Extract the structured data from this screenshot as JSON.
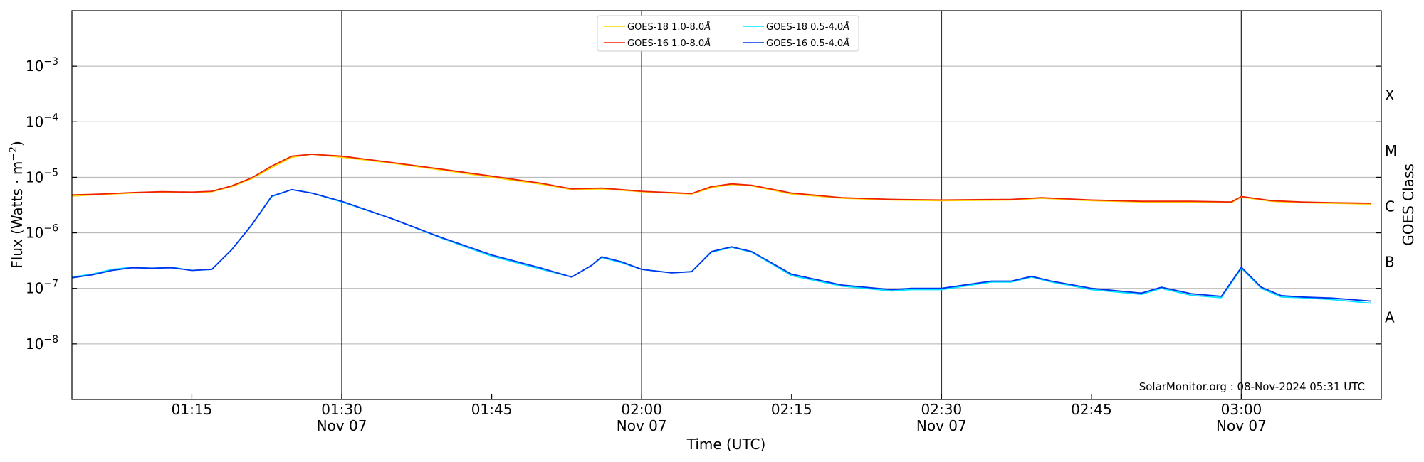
{
  "chart_data": {
    "type": "line",
    "xlabel": "Time (UTC)",
    "ylabel": "Flux (Watts · m",
    "ylabel_sup": "−2",
    "ylabel_close": ")",
    "right_label": "GOES Class",
    "y_scale": "log",
    "ylim": [
      1e-09,
      0.01
    ],
    "y_ticks": [
      {
        "value": 1e-08,
        "base": "10",
        "exp": "−8"
      },
      {
        "value": 1e-07,
        "base": "10",
        "exp": "−7"
      },
      {
        "value": 1e-06,
        "base": "10",
        "exp": "−6"
      },
      {
        "value": 1e-05,
        "base": "10",
        "exp": "−5"
      },
      {
        "value": 0.0001,
        "base": "10",
        "exp": "−4"
      },
      {
        "value": 0.001,
        "base": "10",
        "exp": "−3"
      }
    ],
    "xlim": [
      "01:03",
      "03:14"
    ],
    "x_ticks": [
      {
        "time": "01:15",
        "label": "01:15",
        "sub": ""
      },
      {
        "time": "01:30",
        "label": "01:30",
        "sub": "Nov 07"
      },
      {
        "time": "01:45",
        "label": "01:45",
        "sub": ""
      },
      {
        "time": "02:00",
        "label": "02:00",
        "sub": "Nov 07"
      },
      {
        "time": "02:15",
        "label": "02:15",
        "sub": ""
      },
      {
        "time": "02:30",
        "label": "02:30",
        "sub": "Nov 07"
      },
      {
        "time": "02:45",
        "label": "02:45",
        "sub": ""
      },
      {
        "time": "03:00",
        "label": "03:00",
        "sub": "Nov 07"
      }
    ],
    "vertical_lines": [
      "01:30",
      "02:00",
      "02:30",
      "03:00"
    ],
    "goes_classes": [
      {
        "label": "A",
        "value": 3e-08
      },
      {
        "label": "B",
        "value": 3e-07
      },
      {
        "label": "C",
        "value": 3e-06
      },
      {
        "label": "M",
        "value": 3e-05
      },
      {
        "label": "X",
        "value": 0.0003
      }
    ],
    "grid": true,
    "legend_position": "top-center",
    "legend": [
      {
        "name": "GOES-18 1.0-8.0",
        "unit": "Å",
        "color": "#ffd700"
      },
      {
        "name": "GOES-18 0.5-4.0",
        "unit": "Å",
        "color": "#00e5ff"
      },
      {
        "name": "GOES-16 1.0-8.0",
        "unit": "Å",
        "color": "#ee2200"
      },
      {
        "name": "GOES-16 0.5-4.0",
        "unit": "Å",
        "color": "#0033ee"
      }
    ],
    "series": [
      {
        "name": "GOES-18 1.0-8.0",
        "color": "#ffd700",
        "points": [
          [
            "01:03",
            4.6e-06
          ],
          [
            "01:06",
            4.9e-06
          ],
          [
            "01:09",
            5.2e-06
          ],
          [
            "01:12",
            5.4e-06
          ],
          [
            "01:15",
            5.3e-06
          ],
          [
            "01:17",
            5.5e-06
          ],
          [
            "01:19",
            6.8e-06
          ],
          [
            "01:21",
            9.5e-06
          ],
          [
            "01:23",
            1.5e-05
          ],
          [
            "01:25",
            2.3e-05
          ],
          [
            "01:27",
            2.6e-05
          ],
          [
            "01:30",
            2.3e-05
          ],
          [
            "01:35",
            1.8e-05
          ],
          [
            "01:40",
            1.35e-05
          ],
          [
            "01:45",
            1e-05
          ],
          [
            "01:50",
            7.5e-06
          ],
          [
            "01:53",
            6e-06
          ],
          [
            "01:56",
            6.2e-06
          ],
          [
            "02:00",
            5.5e-06
          ],
          [
            "02:05",
            5e-06
          ],
          [
            "02:07",
            6.5e-06
          ],
          [
            "02:09",
            7.4e-06
          ],
          [
            "02:11",
            7e-06
          ],
          [
            "02:15",
            5e-06
          ],
          [
            "02:20",
            4.2e-06
          ],
          [
            "02:25",
            3.9e-06
          ],
          [
            "02:30",
            3.8e-06
          ],
          [
            "02:37",
            3.9e-06
          ],
          [
            "02:40",
            4.2e-06
          ],
          [
            "02:45",
            3.8e-06
          ],
          [
            "02:50",
            3.6e-06
          ],
          [
            "02:55",
            3.6e-06
          ],
          [
            "02:59",
            3.5e-06
          ],
          [
            "03:00",
            4.4e-06
          ],
          [
            "03:03",
            3.7e-06
          ],
          [
            "03:06",
            3.5e-06
          ],
          [
            "03:09",
            3.4e-06
          ],
          [
            "03:13",
            3.3e-06
          ]
        ]
      },
      {
        "name": "GOES-16 1.0-8.0",
        "color": "#ee2200",
        "points": [
          [
            "01:03",
            4.8e-06
          ],
          [
            "01:06",
            5e-06
          ],
          [
            "01:09",
            5.3e-06
          ],
          [
            "01:12",
            5.5e-06
          ],
          [
            "01:15",
            5.4e-06
          ],
          [
            "01:17",
            5.6e-06
          ],
          [
            "01:19",
            7e-06
          ],
          [
            "01:21",
            9.8e-06
          ],
          [
            "01:23",
            1.6e-05
          ],
          [
            "01:25",
            2.4e-05
          ],
          [
            "01:27",
            2.6e-05
          ],
          [
            "01:30",
            2.4e-05
          ],
          [
            "01:35",
            1.85e-05
          ],
          [
            "01:40",
            1.4e-05
          ],
          [
            "01:45",
            1.05e-05
          ],
          [
            "01:50",
            7.8e-06
          ],
          [
            "01:53",
            6.2e-06
          ],
          [
            "01:56",
            6.4e-06
          ],
          [
            "02:00",
            5.6e-06
          ],
          [
            "02:05",
            5.1e-06
          ],
          [
            "02:07",
            6.8e-06
          ],
          [
            "02:09",
            7.6e-06
          ],
          [
            "02:11",
            7.2e-06
          ],
          [
            "02:15",
            5.2e-06
          ],
          [
            "02:20",
            4.3e-06
          ],
          [
            "02:25",
            4e-06
          ],
          [
            "02:30",
            3.9e-06
          ],
          [
            "02:37",
            4e-06
          ],
          [
            "02:40",
            4.3e-06
          ],
          [
            "02:45",
            3.9e-06
          ],
          [
            "02:50",
            3.7e-06
          ],
          [
            "02:55",
            3.7e-06
          ],
          [
            "02:59",
            3.6e-06
          ],
          [
            "03:00",
            4.5e-06
          ],
          [
            "03:03",
            3.8e-06
          ],
          [
            "03:06",
            3.6e-06
          ],
          [
            "03:09",
            3.5e-06
          ],
          [
            "03:13",
            3.4e-06
          ]
        ]
      },
      {
        "name": "GOES-18 0.5-4.0",
        "color": "#00e5ff",
        "points": [
          [
            "01:03",
            1.6e-07
          ],
          [
            "01:05",
            1.8e-07
          ],
          [
            "01:07",
            2.2e-07
          ],
          [
            "01:09",
            2.4e-07
          ],
          [
            "01:11",
            2.3e-07
          ],
          [
            "01:13",
            2.4e-07
          ],
          [
            "01:15",
            2.1e-07
          ],
          [
            "01:17",
            2.2e-07
          ],
          [
            "01:19",
            5e-07
          ],
          [
            "01:21",
            1.4e-06
          ],
          [
            "01:23",
            4.5e-06
          ],
          [
            "01:25",
            6e-06
          ],
          [
            "01:27",
            5.2e-06
          ],
          [
            "01:30",
            3.6e-06
          ],
          [
            "01:35",
            1.8e-06
          ],
          [
            "01:40",
            8e-07
          ],
          [
            "01:45",
            3.8e-07
          ],
          [
            "01:50",
            2.2e-07
          ],
          [
            "01:53",
            1.6e-07
          ],
          [
            "01:55",
            2.6e-07
          ],
          [
            "01:56",
            3.6e-07
          ],
          [
            "01:58",
            2.9e-07
          ],
          [
            "02:00",
            2.2e-07
          ],
          [
            "02:03",
            1.9e-07
          ],
          [
            "02:05",
            2e-07
          ],
          [
            "02:07",
            4.5e-07
          ],
          [
            "02:09",
            5.5e-07
          ],
          [
            "02:11",
            4.5e-07
          ],
          [
            "02:15",
            1.7e-07
          ],
          [
            "02:20",
            1.1e-07
          ],
          [
            "02:25",
            9e-08
          ],
          [
            "02:27",
            9.5e-08
          ],
          [
            "02:30",
            9.5e-08
          ],
          [
            "02:35",
            1.3e-07
          ],
          [
            "02:37",
            1.3e-07
          ],
          [
            "02:39",
            1.6e-07
          ],
          [
            "02:41",
            1.3e-07
          ],
          [
            "02:45",
            9.5e-08
          ],
          [
            "02:50",
            7.8e-08
          ],
          [
            "02:52",
            1e-07
          ],
          [
            "02:55",
            7.5e-08
          ],
          [
            "02:58",
            6.8e-08
          ],
          [
            "03:00",
            2.3e-07
          ],
          [
            "03:02",
            1e-07
          ],
          [
            "03:04",
            7e-08
          ],
          [
            "03:06",
            6.8e-08
          ],
          [
            "03:09",
            6.3e-08
          ],
          [
            "03:13",
            5.4e-08
          ]
        ]
      },
      {
        "name": "GOES-16 0.5-4.0",
        "color": "#0033ee",
        "points": [
          [
            "01:03",
            1.55e-07
          ],
          [
            "01:05",
            1.75e-07
          ],
          [
            "01:07",
            2.1e-07
          ],
          [
            "01:09",
            2.35e-07
          ],
          [
            "01:11",
            2.3e-07
          ],
          [
            "01:13",
            2.35e-07
          ],
          [
            "01:15",
            2.1e-07
          ],
          [
            "01:17",
            2.2e-07
          ],
          [
            "01:19",
            5e-07
          ],
          [
            "01:21",
            1.4e-06
          ],
          [
            "01:23",
            4.6e-06
          ],
          [
            "01:25",
            6e-06
          ],
          [
            "01:27",
            5.2e-06
          ],
          [
            "01:30",
            3.7e-06
          ],
          [
            "01:35",
            1.8e-06
          ],
          [
            "01:40",
            8.2e-07
          ],
          [
            "01:45",
            4e-07
          ],
          [
            "01:50",
            2.3e-07
          ],
          [
            "01:53",
            1.6e-07
          ],
          [
            "01:55",
            2.6e-07
          ],
          [
            "01:56",
            3.7e-07
          ],
          [
            "01:58",
            3e-07
          ],
          [
            "02:00",
            2.2e-07
          ],
          [
            "02:03",
            1.9e-07
          ],
          [
            "02:05",
            2e-07
          ],
          [
            "02:07",
            4.6e-07
          ],
          [
            "02:09",
            5.6e-07
          ],
          [
            "02:11",
            4.6e-07
          ],
          [
            "02:15",
            1.8e-07
          ],
          [
            "02:20",
            1.15e-07
          ],
          [
            "02:25",
            9.5e-08
          ],
          [
            "02:27",
            1e-07
          ],
          [
            "02:30",
            1e-07
          ],
          [
            "02:35",
            1.35e-07
          ],
          [
            "02:37",
            1.35e-07
          ],
          [
            "02:39",
            1.65e-07
          ],
          [
            "02:41",
            1.35e-07
          ],
          [
            "02:45",
            1e-07
          ],
          [
            "02:50",
            8.2e-08
          ],
          [
            "02:52",
            1.05e-07
          ],
          [
            "02:55",
            8e-08
          ],
          [
            "02:58",
            7.2e-08
          ],
          [
            "03:00",
            2.4e-07
          ],
          [
            "03:02",
            1.05e-07
          ],
          [
            "03:04",
            7.4e-08
          ],
          [
            "03:06",
            7e-08
          ],
          [
            "03:09",
            6.7e-08
          ],
          [
            "03:13",
            5.9e-08
          ]
        ]
      }
    ],
    "credit": "SolarMonitor.org : 08-Nov-2024 05:31 UTC"
  }
}
